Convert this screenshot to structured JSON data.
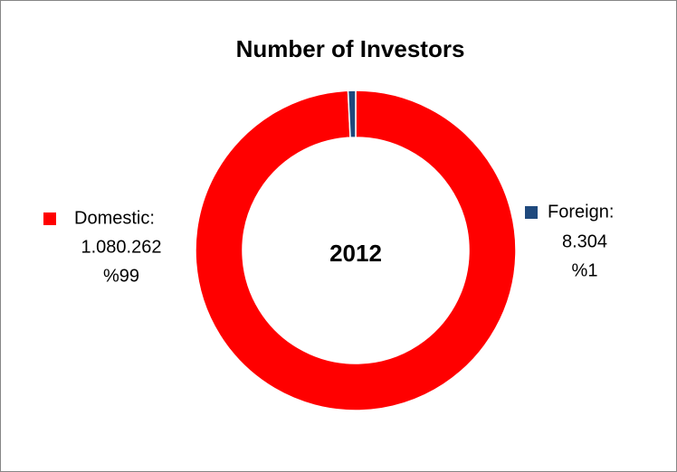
{
  "chart_data": {
    "type": "donut",
    "title": "Number of Investors",
    "center_label": "2012",
    "categories": [
      "Domestic:",
      "Foreign:"
    ],
    "values": [
      1080262,
      8304
    ],
    "value_labels": [
      "1.080.262",
      "8.304"
    ],
    "percent_labels": [
      "%99",
      "%1"
    ],
    "colors": [
      "#ff0000",
      "#1f497d"
    ]
  }
}
